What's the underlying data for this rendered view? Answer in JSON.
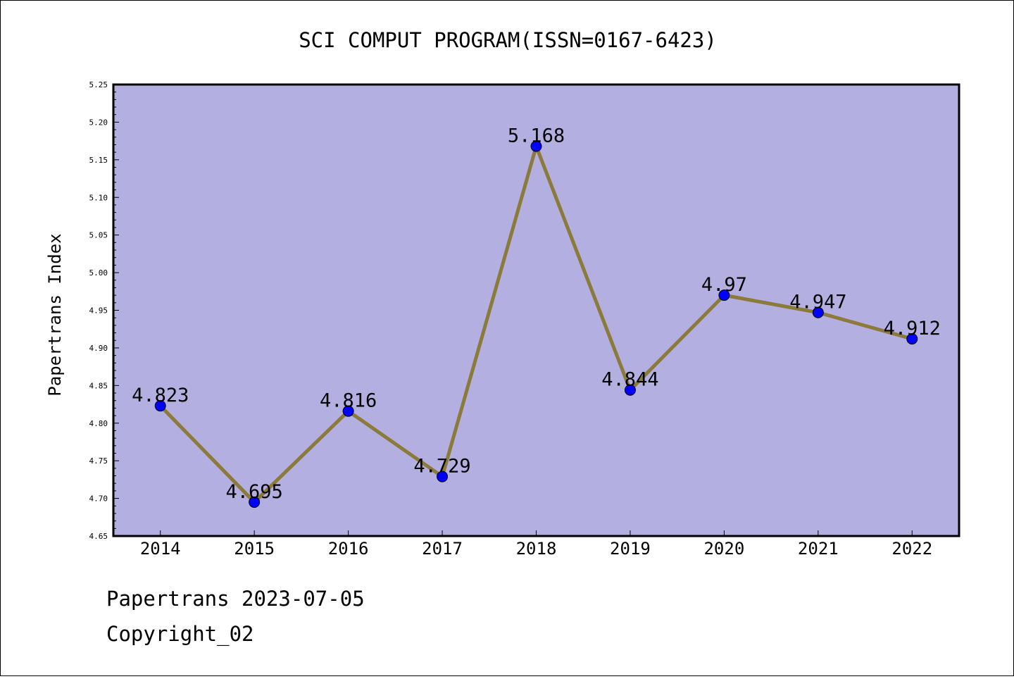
{
  "chart_data": {
    "type": "line",
    "title": "SCI COMPUT PROGRAM(ISSN=0167-6423)",
    "xlabel": "",
    "ylabel": "Papertrans Index",
    "categories": [
      "2014",
      "2015",
      "2016",
      "2017",
      "2018",
      "2019",
      "2020",
      "2021",
      "2022"
    ],
    "values": [
      4.823,
      4.695,
      4.816,
      4.729,
      5.168,
      4.844,
      4.97,
      4.947,
      4.912
    ],
    "data_labels": [
      "4.823",
      "4.695",
      "4.816",
      "4.729",
      "5.168",
      "4.844",
      "4.97",
      "4.947",
      "4.912"
    ],
    "ylim": [
      4.65,
      5.25
    ],
    "yticks": [
      "4.65",
      "4.70",
      "4.75",
      "4.80",
      "4.85",
      "4.90",
      "4.95",
      "5.00",
      "5.05",
      "5.10",
      "5.15",
      "5.20",
      "5.25"
    ],
    "grid": false,
    "legend": "none",
    "colors": {
      "plot_background": "#b4afe1",
      "line": "#8c7a3a",
      "marker": "#0000ff"
    }
  },
  "footer": {
    "source_line": "Papertrans 2023-07-05",
    "copyright_line": "Copyright_02"
  }
}
